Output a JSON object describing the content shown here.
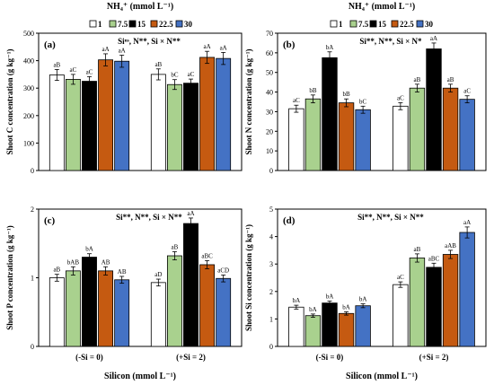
{
  "figure": {
    "legend_title": "NH₄⁺ (mmol L⁻¹)",
    "legend_entries": [
      "1",
      "7.5",
      "15",
      "22.5",
      "30"
    ],
    "legend_colors": [
      "#ffffff",
      "#a9d18e",
      "#000000",
      "#c55a11",
      "#4472c4"
    ],
    "silicon_groups": [
      "(-Si = 0)",
      "(+Si = 2)"
    ],
    "xlabel": "Silicon (mmol L⁻¹)"
  },
  "chart_data": [
    {
      "type": "bar",
      "panel_label": "(a)",
      "stats": "Siⁿˢ, N**, Si × N**",
      "ylabel": "Shoot C concentration (g kg⁻¹)",
      "ylim": [
        0,
        500
      ],
      "yticks": [
        "0",
        "100",
        "200",
        "300",
        "400",
        "500"
      ],
      "categories": [
        "(-Si = 0)",
        "(+Si = 2)"
      ],
      "series": [
        {
          "name": "1",
          "values": [
            348,
            350
          ],
          "errors": [
            20,
            20
          ],
          "letters": [
            "aB",
            "aB"
          ]
        },
        {
          "name": "7.5",
          "values": [
            332,
            313
          ],
          "errors": [
            18,
            18
          ],
          "letters": [
            "aC",
            "bC"
          ]
        },
        {
          "name": "15",
          "values": [
            325,
            318
          ],
          "errors": [
            17,
            15
          ],
          "letters": [
            "aC",
            "aC"
          ]
        },
        {
          "name": "22.5",
          "values": [
            403,
            412
          ],
          "errors": [
            22,
            22
          ],
          "letters": [
            "aA",
            "aA"
          ]
        },
        {
          "name": "30",
          "values": [
            398,
            408
          ],
          "errors": [
            22,
            22
          ],
          "letters": [
            "aA",
            "aA"
          ]
        }
      ]
    },
    {
      "type": "bar",
      "panel_label": "(b)",
      "stats": "Si**, N**, Si × N*",
      "ylabel": "Shoot N concentration (g kg⁻¹)",
      "ylim": [
        0,
        70
      ],
      "yticks": [
        "0",
        "10",
        "20",
        "30",
        "40",
        "50",
        "60",
        "70"
      ],
      "categories": [
        "(-Si = 0)",
        "(+Si = 2)"
      ],
      "series": [
        {
          "name": "1",
          "values": [
            31.5,
            32.8
          ],
          "errors": [
            1.8,
            1.8
          ],
          "letters": [
            "aC",
            "aC"
          ]
        },
        {
          "name": "7.5",
          "values": [
            36.5,
            42
          ],
          "errors": [
            2,
            2
          ],
          "letters": [
            "bB",
            "aB"
          ]
        },
        {
          "name": "15",
          "values": [
            57.5,
            62
          ],
          "errors": [
            3,
            3
          ],
          "letters": [
            "bA",
            "aA"
          ]
        },
        {
          "name": "22.5",
          "values": [
            34.5,
            42
          ],
          "errors": [
            2,
            2
          ],
          "letters": [
            "bB",
            "aB"
          ]
        },
        {
          "name": "30",
          "values": [
            31,
            36.3
          ],
          "errors": [
            1.8,
            1.8
          ],
          "letters": [
            "bC",
            "aC"
          ]
        }
      ]
    },
    {
      "type": "bar",
      "panel_label": "(c)",
      "stats": "Si**, N**, Si × N**",
      "ylabel": "Shoot P concentration (g kg⁻¹)",
      "ylim": [
        0,
        2
      ],
      "yticks": [
        "0",
        "1",
        "2"
      ],
      "categories": [
        "(-Si = 0)",
        "(+Si = 2)"
      ],
      "series": [
        {
          "name": "1",
          "values": [
            1.0,
            0.93
          ],
          "errors": [
            0.05,
            0.05
          ],
          "letters": [
            "aB",
            "aD"
          ]
        },
        {
          "name": "7.5",
          "values": [
            1.1,
            1.32
          ],
          "errors": [
            0.06,
            0.06
          ],
          "letters": [
            "bAB",
            "aB"
          ]
        },
        {
          "name": "15",
          "values": [
            1.3,
            1.79
          ],
          "errors": [
            0.05,
            0.08
          ],
          "letters": [
            "bA",
            "aA"
          ]
        },
        {
          "name": "22.5",
          "values": [
            1.1,
            1.19
          ],
          "errors": [
            0.06,
            0.06
          ],
          "letters": [
            "AB",
            "aBC"
          ]
        },
        {
          "name": "30",
          "values": [
            0.97,
            0.99
          ],
          "errors": [
            0.05,
            0.05
          ],
          "letters": [
            "AB",
            "aCD"
          ]
        }
      ]
    },
    {
      "type": "bar",
      "panel_label": "(d)",
      "stats": "Si**, N**, Si × N**",
      "ylabel": "Shoot Si concentration (g kg⁻¹)",
      "ylim": [
        0,
        5
      ],
      "yticks": [
        "0",
        "1",
        "2",
        "3",
        "4",
        "5"
      ],
      "categories": [
        "(-Si = 0)",
        "(+Si = 2)"
      ],
      "series": [
        {
          "name": "1",
          "values": [
            1.43,
            2.25
          ],
          "errors": [
            0.07,
            0.1
          ],
          "letters": [
            "bA",
            "aC"
          ]
        },
        {
          "name": "7.5",
          "values": [
            1.12,
            3.22
          ],
          "errors": [
            0.06,
            0.15
          ],
          "letters": [
            "bA",
            "aB"
          ]
        },
        {
          "name": "15",
          "values": [
            1.58,
            2.88
          ],
          "errors": [
            0.07,
            0.15
          ],
          "letters": [
            "bA",
            "aBC"
          ]
        },
        {
          "name": "22.5",
          "values": [
            1.2,
            3.35
          ],
          "errors": [
            0.06,
            0.15
          ],
          "letters": [
            "bA",
            "aAB"
          ]
        },
        {
          "name": "30",
          "values": [
            1.48,
            4.15
          ],
          "errors": [
            0.07,
            0.2
          ],
          "letters": [
            "bA",
            "aA"
          ]
        }
      ]
    }
  ]
}
